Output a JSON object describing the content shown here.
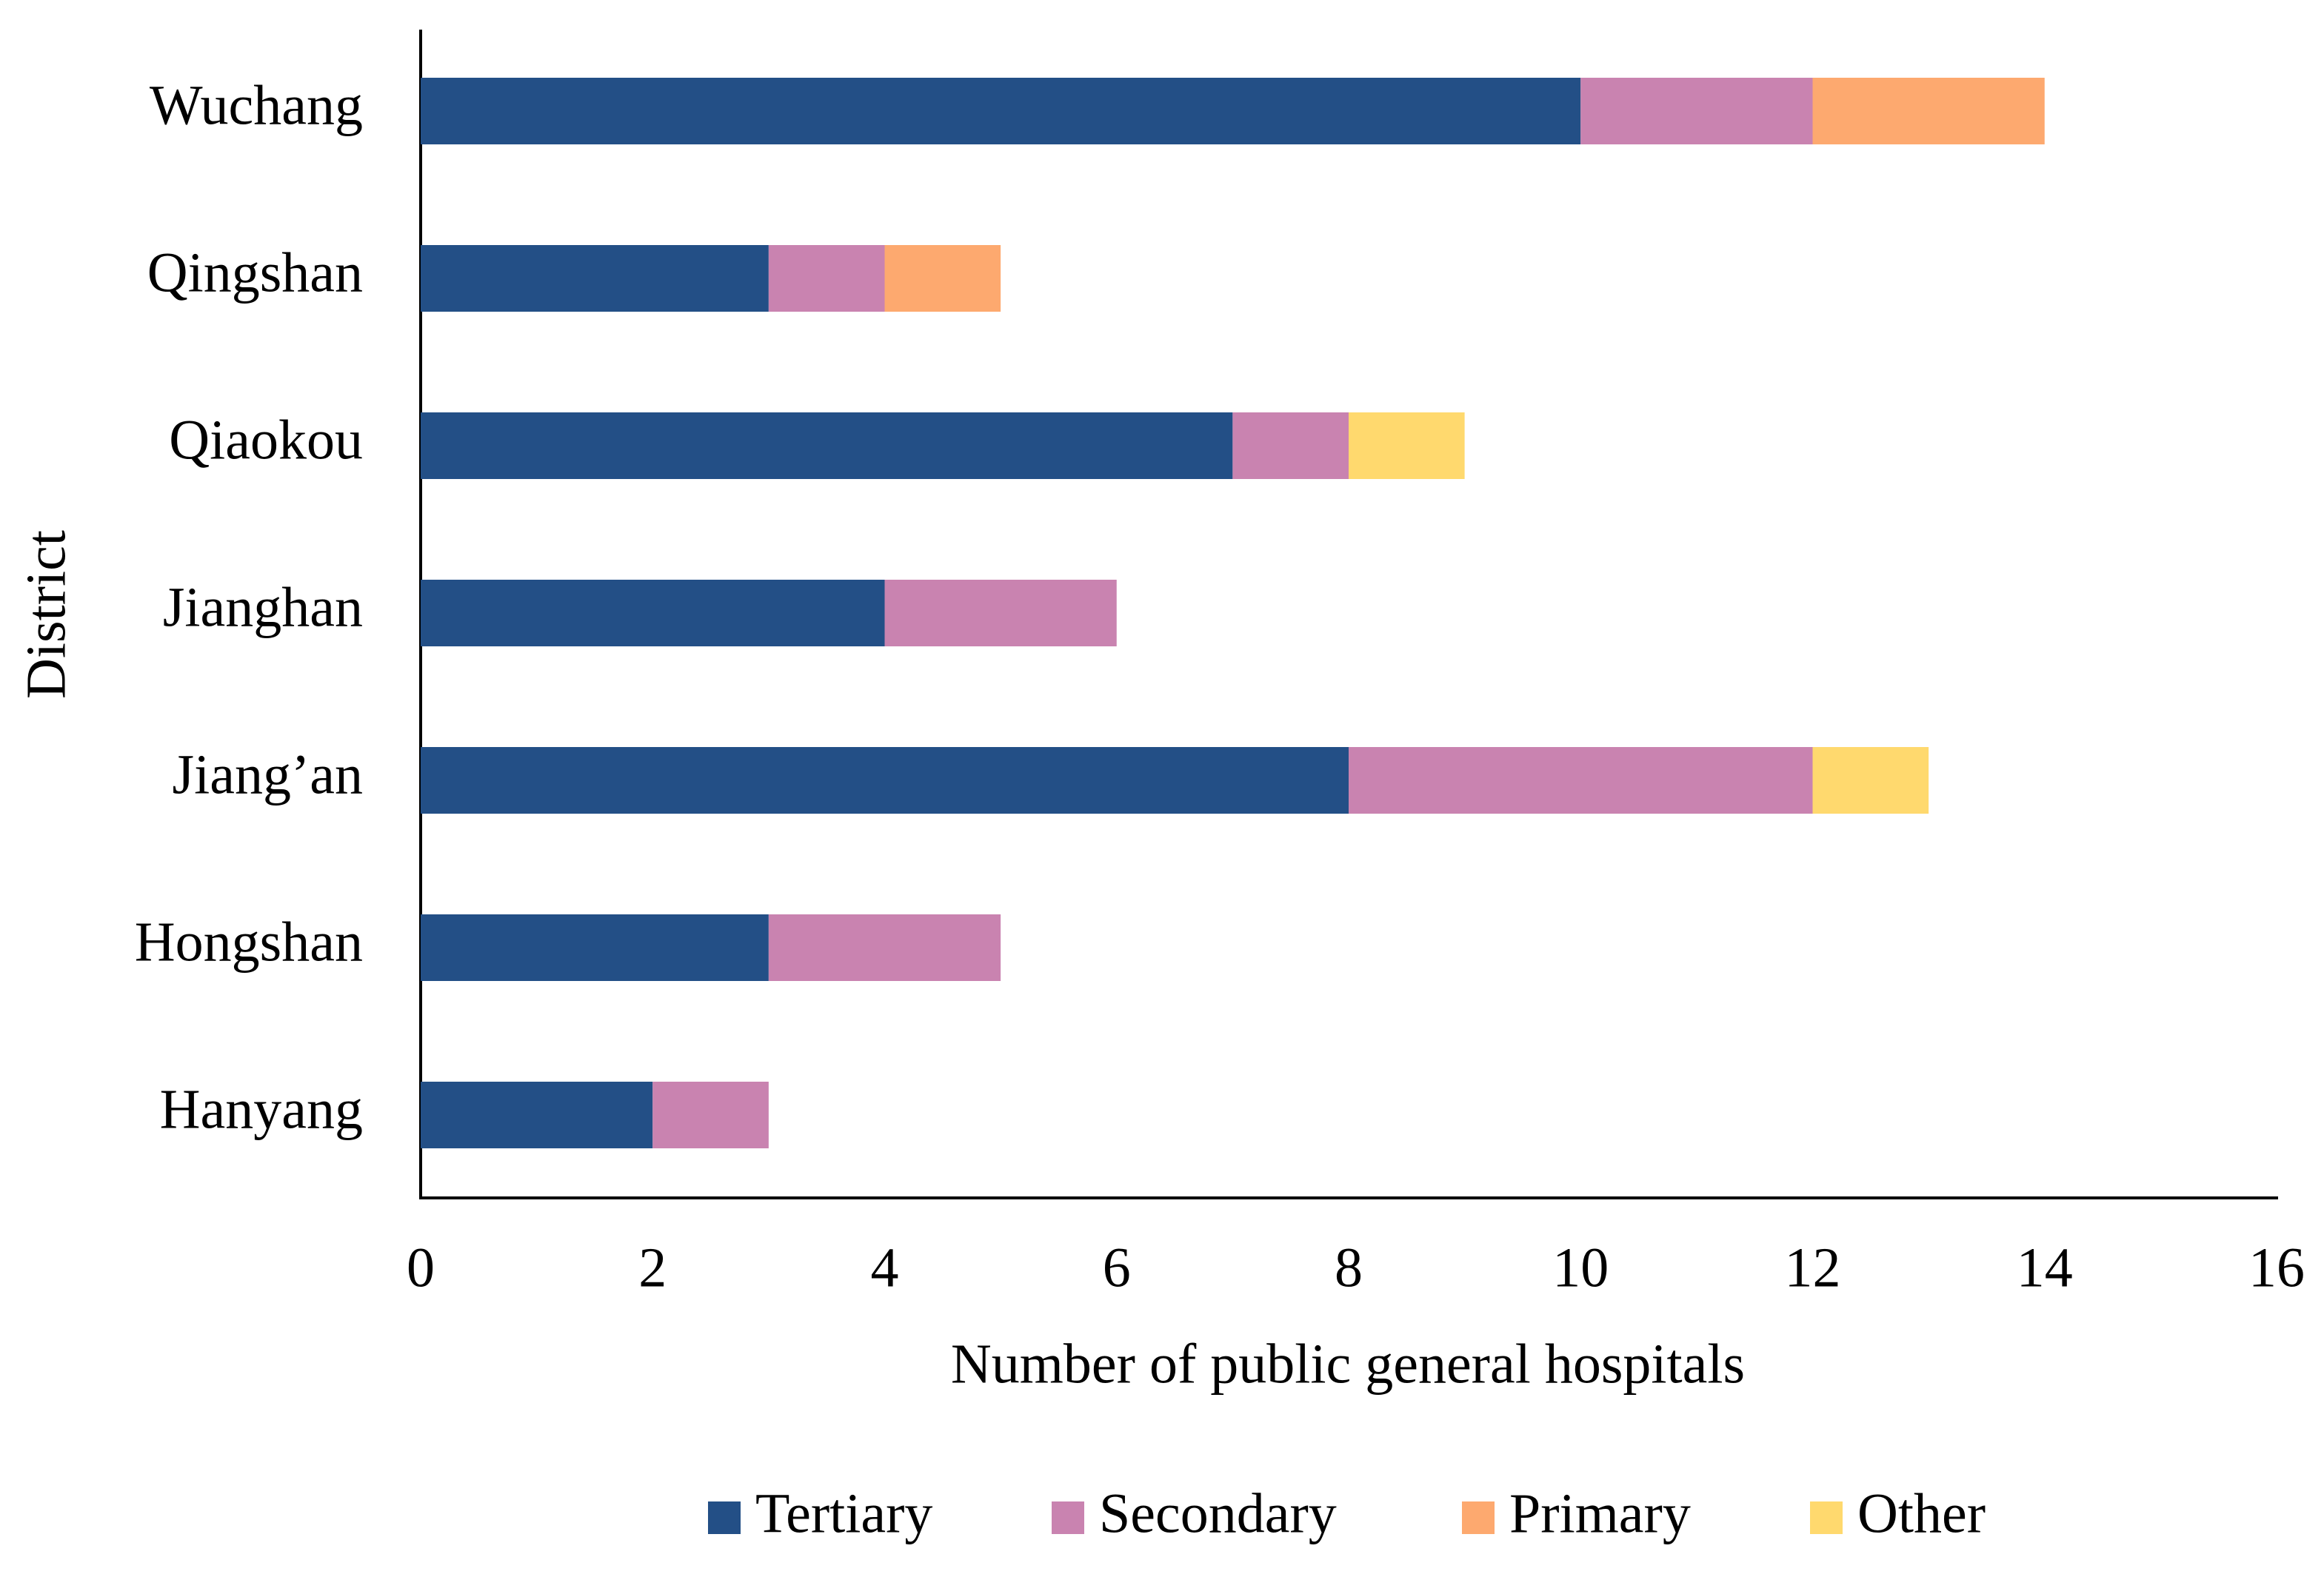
{
  "chart_data": {
    "type": "stacked-bar-horizontal",
    "categories": [
      "Wuchang",
      "Qingshan",
      "Qiaokou",
      "Jianghan",
      "Jiang’an",
      "Hongshan",
      "Hanyang"
    ],
    "series": [
      {
        "name": "Tertiary",
        "color": "#234f86",
        "values": [
          10,
          3,
          7,
          4,
          8,
          3,
          2
        ]
      },
      {
        "name": "Secondary",
        "color": "#c983b0",
        "values": [
          2,
          1,
          1,
          2,
          4,
          2,
          1
        ]
      },
      {
        "name": "Primary",
        "color": "#fda96f",
        "values": [
          2,
          1,
          0,
          0,
          0,
          0,
          0
        ]
      },
      {
        "name": "Other",
        "color": "#ffd96e",
        "values": [
          0,
          0,
          1,
          0,
          1,
          0,
          0
        ]
      }
    ],
    "xlabel": "Number of public general hospitals",
    "ylabel": "District",
    "xlim": [
      0,
      16
    ],
    "xticks": [
      0,
      2,
      4,
      6,
      8,
      10,
      12,
      14,
      16
    ],
    "legend": "bottom"
  }
}
